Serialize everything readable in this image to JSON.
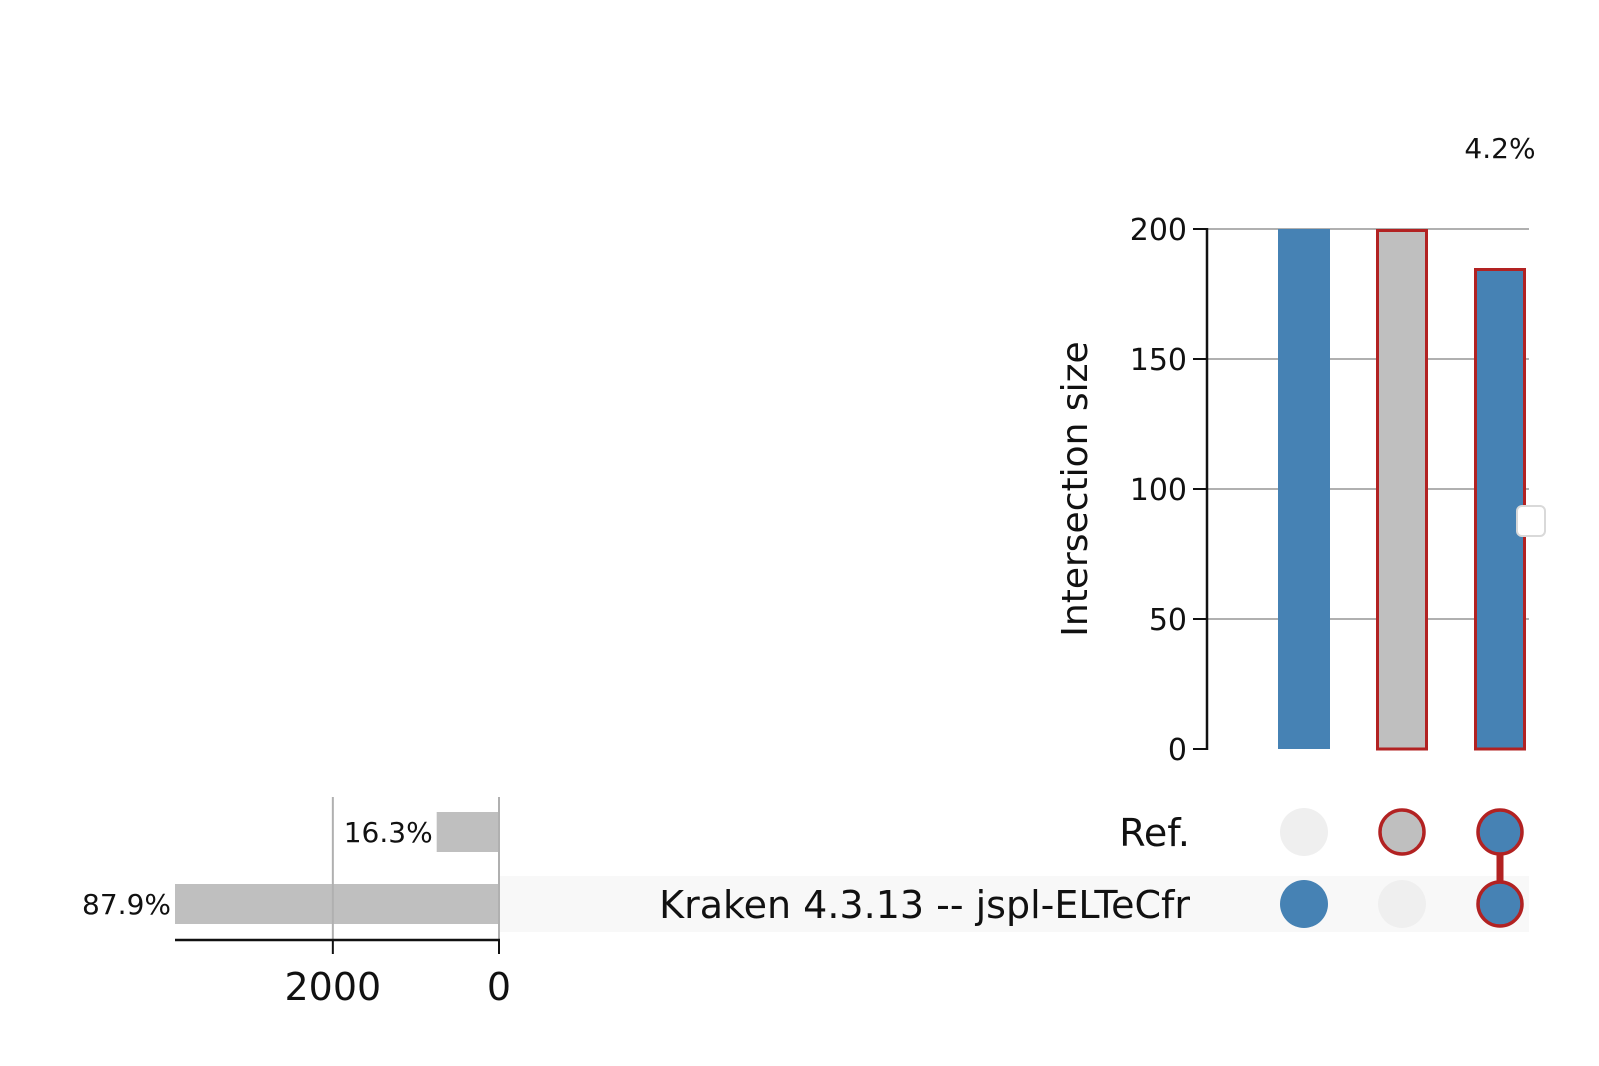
{
  "chart_data": {
    "type": "bar",
    "title": "",
    "intersections": {
      "ylabel": "Intersection size",
      "ylim": [
        0,
        200
      ],
      "yticks": [
        0,
        50,
        100,
        150,
        200
      ],
      "grid": true,
      "bars": [
        {
          "value": 200,
          "members": [
            false,
            true
          ],
          "style": "plain",
          "pct_label": ""
        },
        {
          "value": 200,
          "members": [
            true,
            false
          ],
          "style": "highlight-gray",
          "pct_label": ""
        },
        {
          "value": 185,
          "members": [
            true,
            true
          ],
          "style": "highlight-blue",
          "pct_label": "4.2%"
        }
      ]
    },
    "sets": {
      "names": [
        "Ref.",
        "Kraken 4.3.13 -- jspl-ELTeCfr"
      ],
      "sizes": [
        750,
        3900
      ],
      "pct_labels": [
        "16.3%",
        "87.9%"
      ],
      "xlim": [
        3900,
        0
      ],
      "xticks": [
        2000,
        0
      ]
    },
    "colors": {
      "blue": "#4682b4",
      "gray": "#bfbfbf",
      "highlight_edge": "#b22222",
      "inactive_dot": "#efefef",
      "row_shade": "#f8f8f8",
      "grid": "#b0b0b0"
    }
  }
}
